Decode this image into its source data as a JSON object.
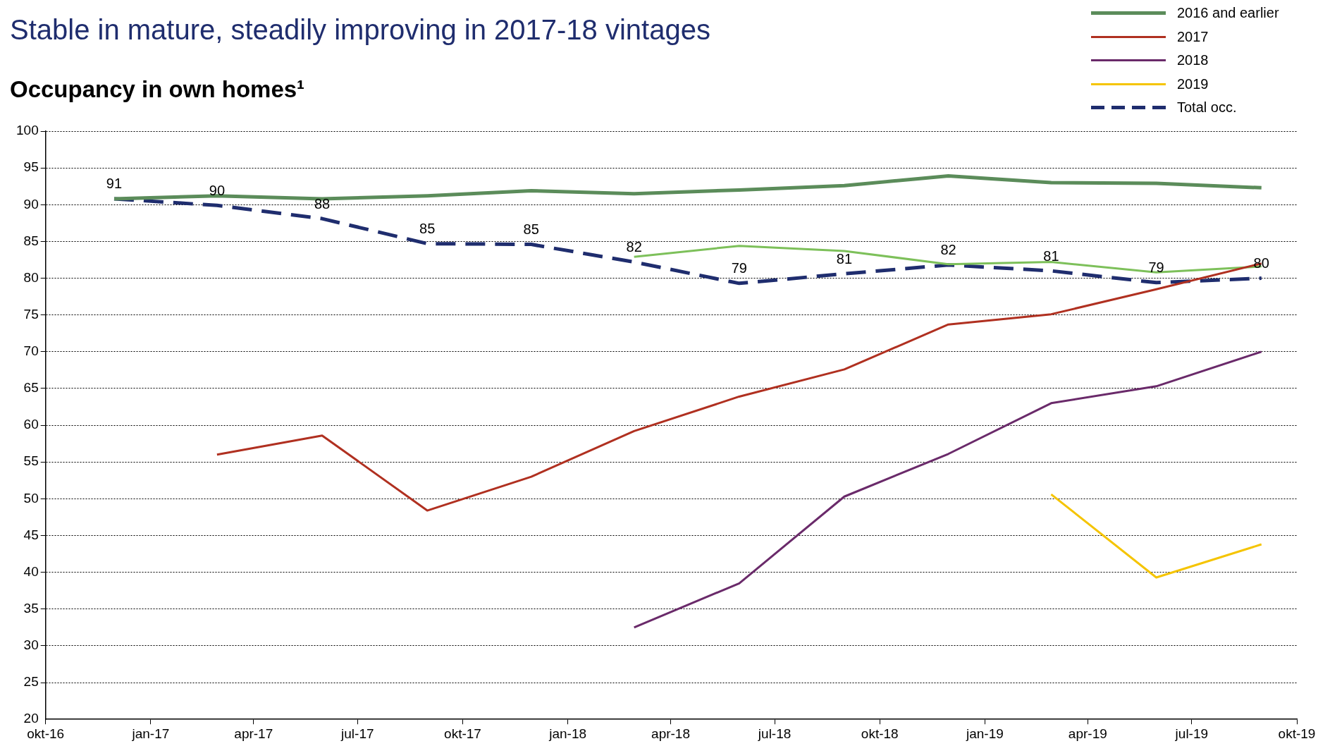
{
  "chart_data": {
    "type": "line",
    "subtitle": "Stable in mature, steadily improving in 2017-18 vintages",
    "title": "Occupancy in own homes¹",
    "x": [
      "2016-11-30",
      "2017-02-28",
      "2017-05-31",
      "2017-08-31",
      "2017-11-30",
      "2018-02-28",
      "2018-05-31",
      "2018-08-31",
      "2018-11-30",
      "2019-02-28",
      "2019-05-31",
      "2019-08-31"
    ],
    "xlim": [
      "2016-10-01",
      "2019-10-01"
    ],
    "xticks": [
      {
        "value": "2016-10-01",
        "label": "okt-16"
      },
      {
        "value": "2017-01-01",
        "label": "jan-17"
      },
      {
        "value": "2017-04-01",
        "label": "apr-17"
      },
      {
        "value": "2017-07-01",
        "label": "jul-17"
      },
      {
        "value": "2017-10-01",
        "label": "okt-17"
      },
      {
        "value": "2018-01-01",
        "label": "jan-18"
      },
      {
        "value": "2018-04-01",
        "label": "apr-18"
      },
      {
        "value": "2018-07-01",
        "label": "jul-18"
      },
      {
        "value": "2018-10-01",
        "label": "okt-18"
      },
      {
        "value": "2019-01-01",
        "label": "jan-19"
      },
      {
        "value": "2019-04-01",
        "label": "apr-19"
      },
      {
        "value": "2019-07-01",
        "label": "jul-19"
      },
      {
        "value": "2019-10-01",
        "label": "okt-19"
      }
    ],
    "ylim": [
      20,
      100
    ],
    "yticks": [
      20,
      25,
      30,
      35,
      40,
      45,
      50,
      55,
      60,
      65,
      70,
      75,
      80,
      85,
      90,
      95,
      100
    ],
    "grid": "y",
    "legend": "top right",
    "marker": "none",
    "series": [
      {
        "name": "2016 and earlier",
        "color": "#5b8c5a",
        "values": [
          90.8,
          91.2,
          90.8,
          91.2,
          91.9,
          91.5,
          92.0,
          92.6,
          93.9,
          93.0,
          92.9,
          92.3
        ]
      },
      {
        "name": "2017",
        "color": "#b03020",
        "values": [
          null,
          56.0,
          58.6,
          48.4,
          53.0,
          59.2,
          63.9,
          67.6,
          73.7,
          75.1,
          78.5,
          82.0
        ]
      },
      {
        "name": "2018",
        "color": "#6a2a6a",
        "values": [
          null,
          null,
          null,
          null,
          null,
          32.5,
          38.5,
          50.3,
          56.1,
          63.0,
          65.3,
          70.0
        ]
      },
      {
        "name": "2019",
        "color": "#f5c400",
        "values": [
          null,
          null,
          null,
          null,
          null,
          null,
          null,
          null,
          null,
          50.6,
          39.3,
          43.8
        ]
      },
      {
        "color": "#7dc05a",
        "values": [
          null,
          null,
          null,
          null,
          null,
          82.9,
          84.4,
          83.7,
          81.9,
          82.2,
          80.8,
          81.6
        ]
      },
      {
        "name": "Total occ.",
        "color": "#1f2d6e",
        "line_style": "dashed",
        "values": [
          90.8,
          89.9,
          88.1,
          84.7,
          84.6,
          82.2,
          79.3,
          80.6,
          81.8,
          81.0,
          79.4,
          80.0
        ],
        "value_labels": [
          "91",
          "90",
          "88",
          "85",
          "85",
          "82",
          "79",
          "81",
          "82",
          "81",
          "79",
          "80"
        ]
      }
    ]
  }
}
